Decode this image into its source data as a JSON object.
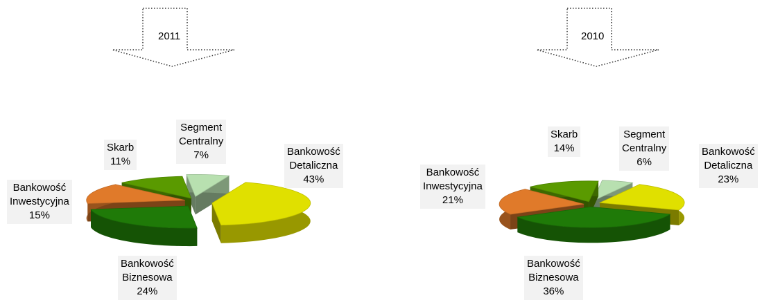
{
  "chart_data": [
    {
      "type": "pie",
      "title": "2011",
      "colors": [
        "#e0e000",
        "#1f7a08",
        "#e07a2a",
        "#5a9a00",
        "#b8e0b0"
      ],
      "slices": [
        {
          "label_lines": [
            "Bankowość",
            "Detaliczna"
          ],
          "value": 43,
          "value_text": "43%"
        },
        {
          "label_lines": [
            "Bankowość",
            "Biznesowa"
          ],
          "value": 24,
          "value_text": "24%"
        },
        {
          "label_lines": [
            "Bankowość",
            "Inwestycyjna"
          ],
          "value": 15,
          "value_text": "15%"
        },
        {
          "label_lines": [
            "Skarb"
          ],
          "value": 11,
          "value_text": "11%"
        },
        {
          "label_lines": [
            "Segment",
            "Centralny"
          ],
          "value": 7,
          "value_text": "7%"
        }
      ]
    },
    {
      "type": "pie",
      "title": "2010",
      "colors": [
        "#e0e000",
        "#1f7a08",
        "#e07a2a",
        "#5a9a00",
        "#b8e0b0"
      ],
      "slices": [
        {
          "label_lines": [
            "Bankowość",
            "Detaliczna"
          ],
          "value": 23,
          "value_text": "23%"
        },
        {
          "label_lines": [
            "Bankowość",
            "Biznesowa"
          ],
          "value": 36,
          "value_text": "36%"
        },
        {
          "label_lines": [
            "Bankowość",
            "Inwestycyjna"
          ],
          "value": 21,
          "value_text": "21%"
        },
        {
          "label_lines": [
            "Skarb"
          ],
          "value": 14,
          "value_text": "14%"
        },
        {
          "label_lines": [
            "Segment",
            "Centralny"
          ],
          "value": 6,
          "value_text": "6%"
        }
      ]
    }
  ]
}
